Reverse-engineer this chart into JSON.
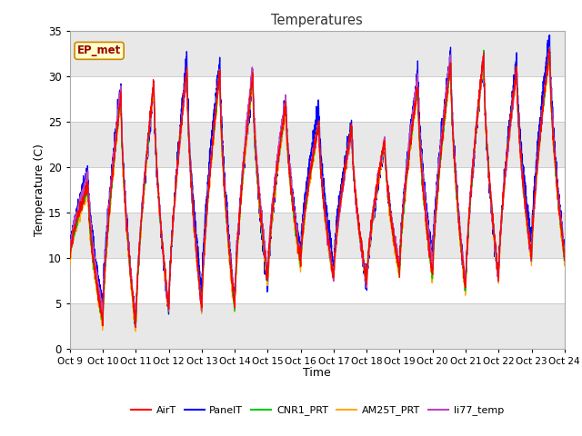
{
  "title": "Temperatures",
  "xlabel": "Time",
  "ylabel": "Temperature (C)",
  "ylim": [
    0,
    35
  ],
  "xlim": [
    0,
    15
  ],
  "x_tick_labels": [
    "Oct 9",
    "Oct 10",
    "Oct 11",
    "Oct 12",
    "Oct 13",
    "Oct 14",
    "Oct 15",
    "Oct 16",
    "Oct 17",
    "Oct 18",
    "Oct 19",
    "Oct 20",
    "Oct 21",
    "Oct 22",
    "Oct 23",
    "Oct 24"
  ],
  "series_colors": {
    "AirT": "#ff0000",
    "PanelT": "#0000ff",
    "CNR1_PRT": "#00cc00",
    "AM25T_PRT": "#ffaa00",
    "li77_temp": "#bb44bb"
  },
  "legend_label": "EP_met",
  "annotation_box_facecolor": "#ffffcc",
  "annotation_box_edgecolor": "#cc8800",
  "annotation_text_color": "#990000",
  "band_colors": [
    "#e8e8e8",
    "#d8d8d8"
  ],
  "grid_line_color": "#cccccc",
  "n_points": 3600,
  "days": 15,
  "day_maxes": [
    18,
    28,
    29.5,
    31,
    30.5,
    30.3,
    27,
    25,
    24.5,
    23,
    29,
    31.5,
    32.5,
    31,
    33
  ],
  "day_mins": [
    10,
    3,
    2.5,
    4.5,
    4.5,
    4.5,
    7.5,
    9.5,
    8,
    7.5,
    8.5,
    8,
    6.5,
    8,
    10
  ]
}
